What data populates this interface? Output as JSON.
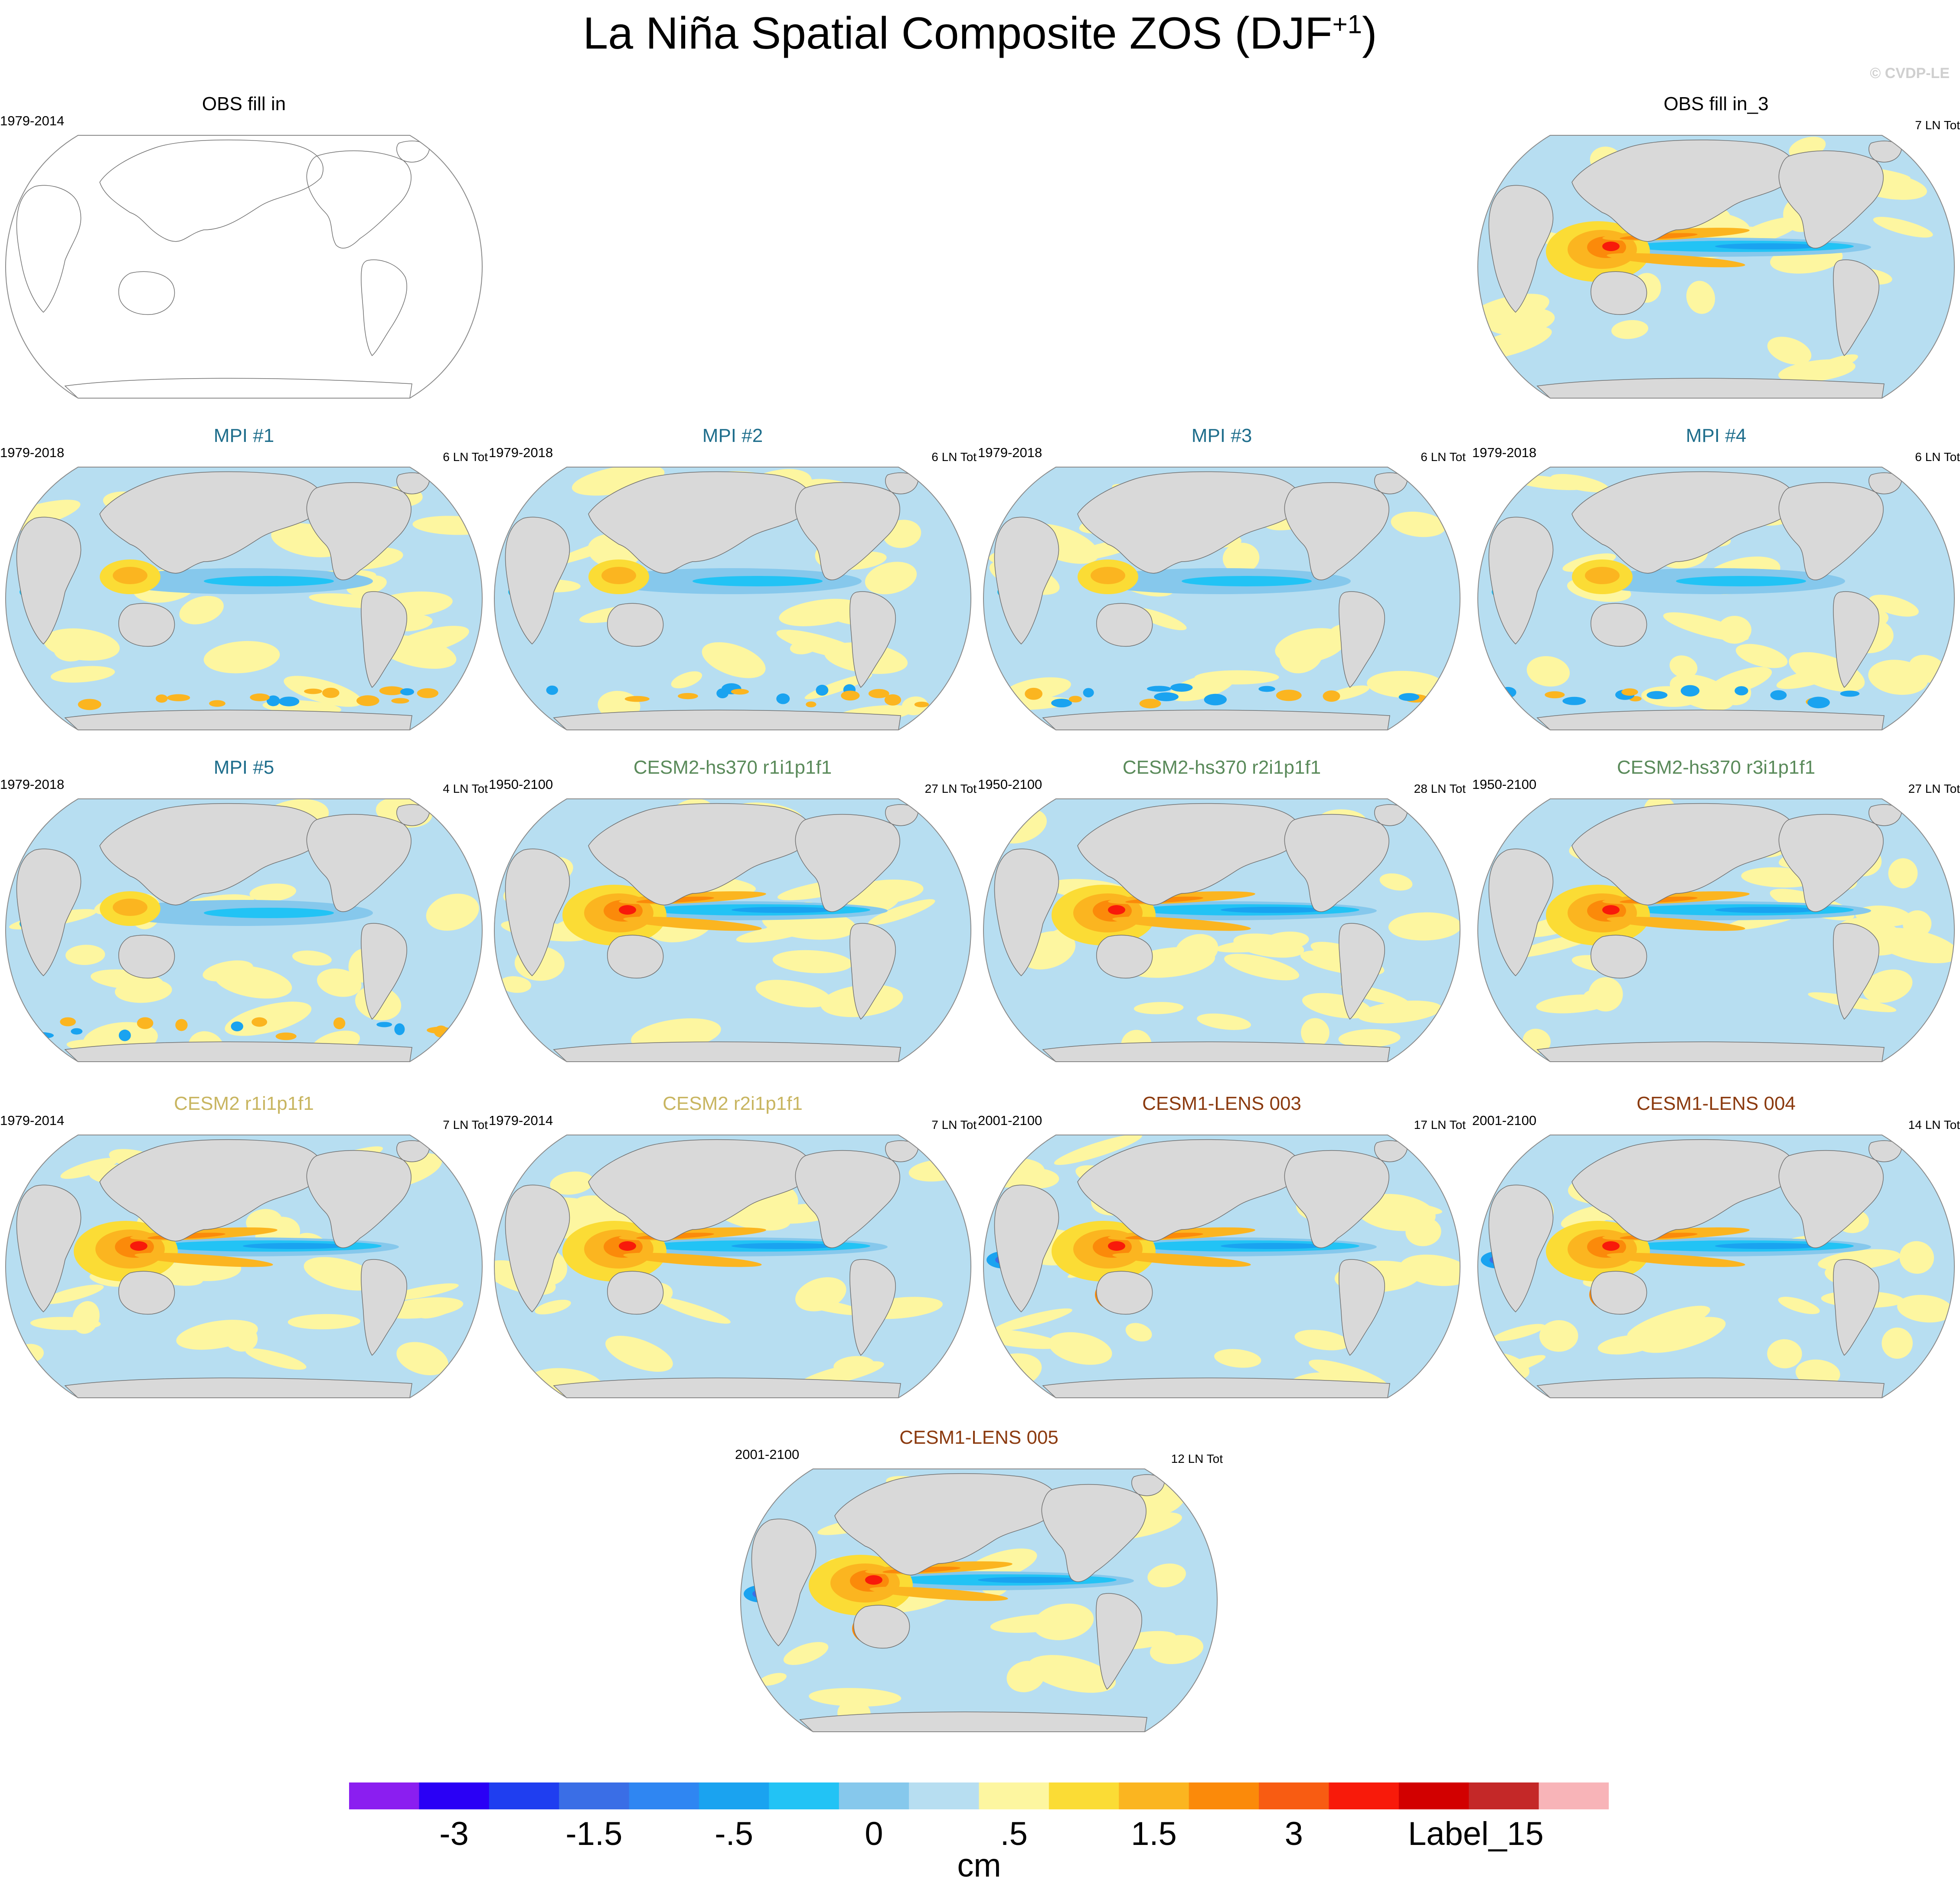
{
  "title": {
    "text": "La Niña Spatial Composite ZOS (DJF",
    "sup": "+1",
    "close": ")"
  },
  "watermark": "© CVDP-LE",
  "chart_data": {
    "type": "heatmap",
    "description_units": "cm",
    "panels": [
      {
        "id": "obs-fill-in",
        "title": "OBS fill in",
        "title_color": "#000000",
        "years": "1979-2014",
        "count": "",
        "empty": true
      },
      {
        "id": "obs-fill-in-3",
        "title": "OBS fill in_3",
        "title_color": "#000000",
        "years": "",
        "count": "7 LN Tot",
        "empty": false,
        "pattern": "obs"
      },
      {
        "id": "mpi-1",
        "title": "MPI #1",
        "title_color": "#1f6e8c",
        "years": "1979-2018",
        "count": "6 LN Tot",
        "empty": false,
        "pattern": "mpi"
      },
      {
        "id": "mpi-2",
        "title": "MPI #2",
        "title_color": "#1f6e8c",
        "years": "1979-2018",
        "count": "6 LN Tot",
        "empty": false,
        "pattern": "mpi"
      },
      {
        "id": "mpi-3",
        "title": "MPI #3",
        "title_color": "#1f6e8c",
        "years": "1979-2018",
        "count": "6 LN Tot",
        "empty": false,
        "pattern": "mpi"
      },
      {
        "id": "mpi-4",
        "title": "MPI #4",
        "title_color": "#1f6e8c",
        "years": "1979-2018",
        "count": "6 LN Tot",
        "empty": false,
        "pattern": "mpi"
      },
      {
        "id": "mpi-5",
        "title": "MPI #5",
        "title_color": "#1f6e8c",
        "years": "1979-2018",
        "count": "4 LN Tot",
        "empty": false,
        "pattern": "mpi"
      },
      {
        "id": "cesm2-hs370-r1",
        "title": "CESM2-hs370 r1i1p1f1",
        "title_color": "#5a8a5a",
        "years": "1950-2100",
        "count": "27 LN Tot",
        "empty": false,
        "pattern": "cesm"
      },
      {
        "id": "cesm2-hs370-r2",
        "title": "CESM2-hs370 r2i1p1f1",
        "title_color": "#5a8a5a",
        "years": "1950-2100",
        "count": "28 LN Tot",
        "empty": false,
        "pattern": "cesm"
      },
      {
        "id": "cesm2-hs370-r3",
        "title": "CESM2-hs370 r3i1p1f1",
        "title_color": "#5a8a5a",
        "years": "1950-2100",
        "count": "27 LN Tot",
        "empty": false,
        "pattern": "cesm"
      },
      {
        "id": "cesm2-r1",
        "title": "CESM2 r1i1p1f1",
        "title_color": "#c8b560",
        "years": "1979-2014",
        "count": "7 LN Tot",
        "empty": false,
        "pattern": "cesm"
      },
      {
        "id": "cesm2-r2",
        "title": "CESM2 r2i1p1f1",
        "title_color": "#c8b560",
        "years": "1979-2014",
        "count": "7 LN Tot",
        "empty": false,
        "pattern": "cesm"
      },
      {
        "id": "cesm1-lens-003",
        "title": "CESM1-LENS 003",
        "title_color": "#8b3a0f",
        "years": "2001-2100",
        "count": "17 LN Tot",
        "empty": false,
        "pattern": "lens"
      },
      {
        "id": "cesm1-lens-004",
        "title": "CESM1-LENS 004",
        "title_color": "#8b3a0f",
        "years": "2001-2100",
        "count": "14 LN Tot",
        "empty": false,
        "pattern": "lens"
      },
      {
        "id": "cesm1-lens-005",
        "title": "CESM1-LENS 005",
        "title_color": "#8b3a0f",
        "years": "2001-2100",
        "count": "12 LN Tot",
        "empty": false,
        "pattern": "lens"
      }
    ],
    "colorbar": {
      "units": "cm",
      "colors": [
        "#8b1ef0",
        "#2a00f5",
        "#1f3ef0",
        "#3a6ee6",
        "#2f86f2",
        "#1aa3f0",
        "#22c3f5",
        "#86c8ec",
        "#b7def1",
        "#fdf6a0",
        "#fbdc35",
        "#fbb520",
        "#fb8a0a",
        "#f85c12",
        "#f81a0a",
        "#d20000",
        "#c42828",
        "#f8b4b8"
      ],
      "labels": [
        "-3",
        "-1.5",
        "-.5",
        "0",
        ".5",
        "1.5",
        "3",
        "Label_15"
      ],
      "label_boundaries": [
        2,
        4,
        6,
        8,
        10,
        12,
        14,
        16
      ]
    }
  }
}
